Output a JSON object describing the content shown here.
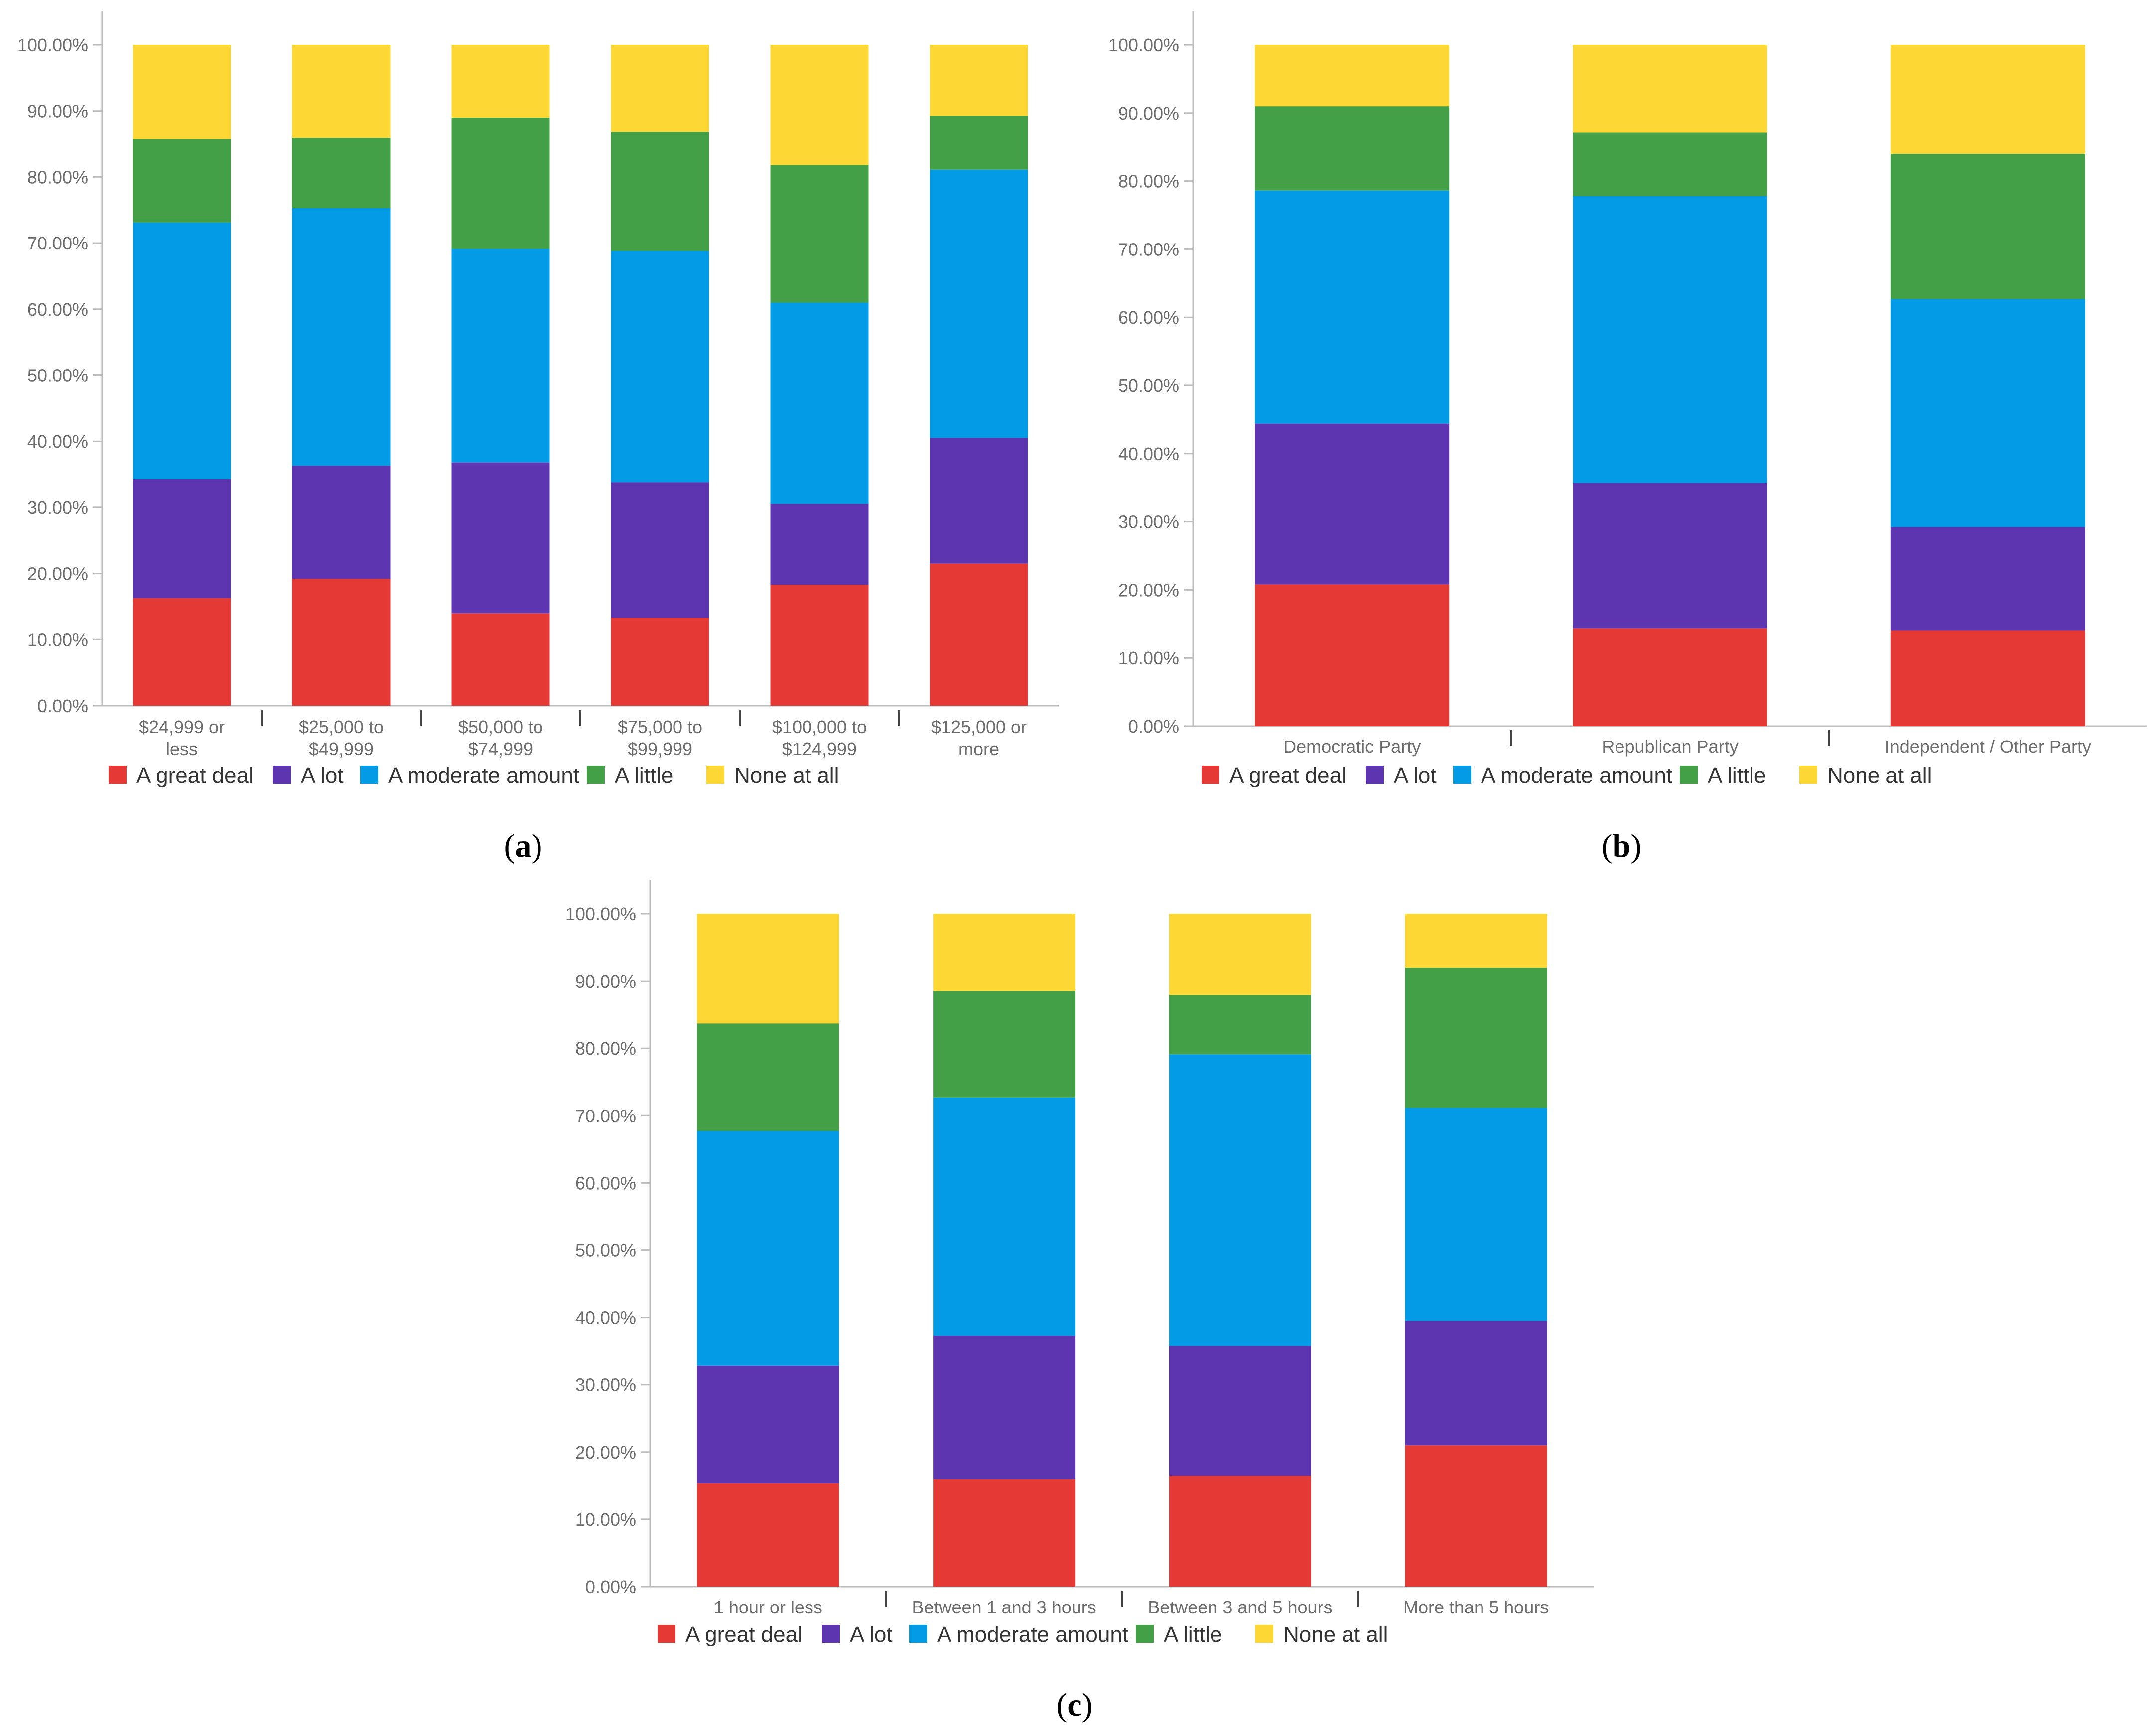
{
  "colors": {
    "A great deal": "#e53935",
    "A lot": "#5e35b1",
    "A moderate amount": "#039be5",
    "A little": "#43a047",
    "None at all": "#fdd835"
  },
  "chart_data": [
    {
      "type": "bar",
      "stacked": true,
      "panel_label": "(a)",
      "panel_letter": "a",
      "title": "",
      "xlabel": "",
      "ylabel": "",
      "ylim": [
        0,
        100
      ],
      "yticks": [
        "0.00%",
        "10.00%",
        "20.00%",
        "30.00%",
        "40.00%",
        "50.00%",
        "60.00%",
        "70.00%",
        "80.00%",
        "90.00%",
        "100.00%"
      ],
      "categories": [
        [
          "$24,999 or",
          "less"
        ],
        [
          "$25,000 to",
          "$49,999"
        ],
        [
          "$50,000 to",
          "$74,999"
        ],
        [
          "$75,000 to",
          "$99,999"
        ],
        [
          "$100,000 to",
          "$124,999"
        ],
        [
          "$125,000 or",
          "more"
        ]
      ],
      "legend": "bottom",
      "series": [
        {
          "name": "A great deal",
          "values": [
            16.3,
            19.2,
            14.0,
            13.3,
            18.3,
            21.5
          ]
        },
        {
          "name": "A lot",
          "values": [
            18.0,
            17.1,
            22.8,
            20.5,
            12.2,
            19.0
          ]
        },
        {
          "name": "A moderate amount",
          "values": [
            38.8,
            39.0,
            32.3,
            35.0,
            30.5,
            40.6
          ]
        },
        {
          "name": "A little",
          "values": [
            12.6,
            10.6,
            19.9,
            18.0,
            20.8,
            8.2
          ]
        },
        {
          "name": "None at all",
          "values": [
            14.3,
            14.1,
            11.0,
            13.2,
            18.2,
            10.7
          ]
        }
      ]
    },
    {
      "type": "bar",
      "stacked": true,
      "panel_label": "(b)",
      "panel_letter": "b",
      "title": "",
      "xlabel": "",
      "ylabel": "",
      "ylim": [
        0,
        100
      ],
      "yticks": [
        "0.00%",
        "10.00%",
        "20.00%",
        "30.00%",
        "40.00%",
        "50.00%",
        "60.00%",
        "70.00%",
        "80.00%",
        "90.00%",
        "100.00%"
      ],
      "categories": [
        [
          "Democratic Party"
        ],
        [
          "Republican Party"
        ],
        [
          "Independent / Other Party"
        ]
      ],
      "legend": "bottom",
      "series": [
        {
          "name": "A great deal",
          "values": [
            20.8,
            14.3,
            14.0
          ]
        },
        {
          "name": "A lot",
          "values": [
            23.6,
            21.4,
            15.2
          ]
        },
        {
          "name": "A moderate amount",
          "values": [
            34.2,
            42.1,
            33.5
          ]
        },
        {
          "name": "A little",
          "values": [
            12.4,
            9.3,
            21.3
          ]
        },
        {
          "name": "None at all",
          "values": [
            9.0,
            12.9,
            16.0
          ]
        }
      ]
    },
    {
      "type": "bar",
      "stacked": true,
      "panel_label": "(c)",
      "panel_letter": "c",
      "title": "",
      "xlabel": "",
      "ylabel": "",
      "ylim": [
        0,
        100
      ],
      "yticks": [
        "0.00%",
        "10.00%",
        "20.00%",
        "30.00%",
        "40.00%",
        "50.00%",
        "60.00%",
        "70.00%",
        "80.00%",
        "90.00%",
        "100.00%"
      ],
      "categories": [
        [
          "1 hour or less"
        ],
        [
          "Between 1 and 3 hours"
        ],
        [
          "Between 3 and 5 hours"
        ],
        [
          "More than 5 hours"
        ]
      ],
      "legend": "bottom",
      "series": [
        {
          "name": "A great deal",
          "values": [
            15.4,
            16.0,
            16.5,
            21.0
          ]
        },
        {
          "name": "A lot",
          "values": [
            17.4,
            21.3,
            19.3,
            18.5
          ]
        },
        {
          "name": "A moderate amount",
          "values": [
            34.9,
            35.4,
            43.3,
            31.7
          ]
        },
        {
          "name": "A little",
          "values": [
            16.0,
            15.8,
            8.8,
            20.8
          ]
        },
        {
          "name": "None at all",
          "values": [
            16.3,
            11.5,
            12.1,
            8.0
          ]
        }
      ]
    }
  ]
}
